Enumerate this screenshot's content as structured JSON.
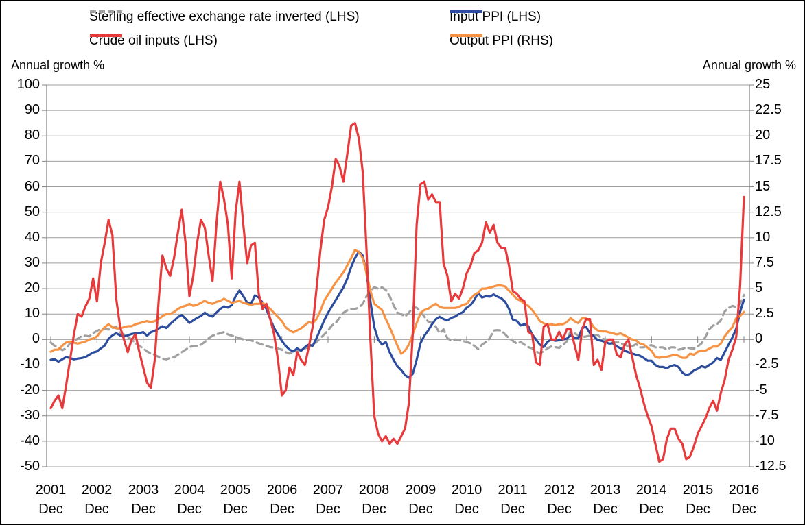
{
  "chart_data": {
    "type": "line",
    "title": "",
    "frequency": "monthly",
    "x_start": "Dec 2001",
    "x_end": "Dec 2016",
    "grid": "horizontal",
    "legend_position": "top",
    "left_axis": {
      "label": "Annual growth %",
      "min": -50,
      "max": 100,
      "step": 10
    },
    "right_axis": {
      "label": "Annual growth %",
      "min": -12.5,
      "max": 25,
      "step": 2.5
    },
    "x_tick_labels": [
      {
        "year": "2001",
        "month": "Dec"
      },
      {
        "year": "2002",
        "month": "Dec"
      },
      {
        "year": "2003",
        "month": "Dec"
      },
      {
        "year": "2004",
        "month": "Dec"
      },
      {
        "year": "2005",
        "month": "Dec"
      },
      {
        "year": "2006",
        "month": "Dec"
      },
      {
        "year": "2007",
        "month": "Dec"
      },
      {
        "year": "2008",
        "month": "Dec"
      },
      {
        "year": "2009",
        "month": "Dec"
      },
      {
        "year": "2010",
        "month": "Dec"
      },
      {
        "year": "2011",
        "month": "Dec"
      },
      {
        "year": "2012",
        "month": "Dec"
      },
      {
        "year": "2013",
        "month": "Dec"
      },
      {
        "year": "2014",
        "month": "Dec"
      },
      {
        "year": "2015",
        "month": "Dec"
      },
      {
        "year": "2016",
        "month": "Dec"
      }
    ],
    "series": [
      {
        "name": "Sterling effective exchange rate inverted (LHS)",
        "axis": "LHS",
        "style": "dashed",
        "color": "#a0a0a0",
        "values": [
          -1.2,
          -2.5,
          -3.3,
          -4.2,
          -3.5,
          -1.5,
          -0.5,
          0.3,
          1.3,
          1.5,
          1.2,
          2.5,
          3.4,
          4,
          4.3,
          3.9,
          4.5,
          5,
          2.5,
          2,
          1,
          0,
          -1.5,
          -2.5,
          -3.5,
          -4.7,
          -5.5,
          -6,
          -6.9,
          -7.5,
          -7.8,
          -7.3,
          -7,
          -6,
          -5,
          -4,
          -3,
          -2.5,
          -2.5,
          -2,
          -1,
          0.5,
          1.5,
          2,
          2.5,
          2.9,
          2,
          1.5,
          1.1,
          0.5,
          0,
          -0.3,
          -0.3,
          -1,
          -1.5,
          -2,
          -2.5,
          -3,
          -3.2,
          -3.6,
          -4,
          -5,
          -5.5,
          -5,
          -4.5,
          -4,
          -3.5,
          -3,
          -2,
          -1,
          0.5,
          2,
          3.5,
          5.5,
          6.5,
          8.5,
          10.5,
          11.5,
          12,
          12,
          12.5,
          14,
          17,
          19,
          20.5,
          20,
          20.5,
          19.5,
          17,
          13.5,
          10.5,
          10,
          9,
          10.5,
          12.5,
          12.5,
          11,
          9,
          7,
          6.5,
          5,
          2.5,
          4,
          0.5,
          -0.5,
          0,
          -0.3,
          -0.5,
          -1,
          -1.5,
          -2.5,
          -3.8,
          -2,
          -1,
          0.5,
          3.5,
          3.7,
          3.5,
          2,
          0.5,
          -0.5,
          -1.6,
          -1,
          -2,
          -3,
          -3.5,
          -4.6,
          -5.5,
          -4.6,
          -3.5,
          -2.7,
          -3,
          -3.3,
          -2,
          -0.8,
          3.5,
          2.5,
          1.5,
          0.9,
          1.2,
          1.5,
          1.8,
          1.8,
          0.5,
          0,
          0,
          -1.3,
          -0.9,
          -1.5,
          -2,
          -2.7,
          -2.7,
          -1.8,
          -3.1,
          -3.1,
          -2.5,
          -2.2,
          -3.1,
          -3.1,
          -3.1,
          -4,
          -3.1,
          -3.1,
          -4,
          -3.7,
          -3.1,
          -3.4,
          -3.6,
          -2.7,
          -1.5,
          1,
          4,
          5.5,
          6,
          7.5,
          11,
          12.4,
          13.2,
          12.7,
          14,
          17.5
        ]
      },
      {
        "name": "Input PPI (LHS)",
        "axis": "LHS",
        "style": "solid",
        "color": "#2c4d9e",
        "values": [
          -8,
          -7.8,
          -8.7,
          -7.8,
          -6.9,
          -7.3,
          -7.8,
          -7.5,
          -7.3,
          -6.9,
          -6,
          -5.1,
          -4.7,
          -3.5,
          -2.4,
          0.3,
          1.6,
          2.5,
          1.6,
          1.2,
          1.6,
          2.2,
          2.4,
          2.5,
          2.9,
          1.5,
          2.9,
          3.4,
          4.3,
          5.2,
          4.5,
          6.1,
          7.4,
          8.8,
          9.6,
          8.2,
          6.5,
          7.5,
          8.5,
          9.2,
          10.5,
          9.5,
          9,
          10.5,
          12,
          13,
          12.5,
          13.5,
          17,
          19.3,
          17,
          14.5,
          14,
          17.3,
          16.5,
          14.5,
          12,
          8,
          4.5,
          2,
          -0.5,
          -2.5,
          -4,
          -4.7,
          -3.5,
          -4.5,
          -3,
          -2,
          -2.5,
          0.5,
          4,
          7.5,
          10.5,
          13,
          15.5,
          18,
          20.5,
          24,
          28.5,
          32,
          34.5,
          33,
          26,
          15,
          5,
          0,
          -2,
          -1,
          -5,
          -8,
          -10.5,
          -12,
          -14,
          -15,
          -13.5,
          -8,
          -1.5,
          1.5,
          3.5,
          6,
          8,
          8.9,
          8,
          7.5,
          8.5,
          9,
          10,
          10.7,
          12.5,
          13.5,
          15.6,
          18.3,
          16.5,
          17,
          16.8,
          17.7,
          16.8,
          16.2,
          14.8,
          12,
          7.8,
          7.3,
          5.5,
          6,
          5.2,
          2,
          0,
          -2,
          -3,
          -0.9,
          0,
          -0.5,
          -0.3,
          0,
          0.3,
          1.7,
          0.7,
          0.4,
          4.5,
          5,
          2.5,
          1.3,
          -0.2,
          -0.5,
          -1,
          -1.6,
          -1.5,
          -2.7,
          -3.5,
          -4.4,
          -5,
          -5.5,
          -6,
          -6.4,
          -7.3,
          -8.3,
          -8.3,
          -10,
          -10.8,
          -10.8,
          -11.3,
          -10.4,
          -10,
          -10.8,
          -13,
          -14,
          -13.5,
          -12.2,
          -11.5,
          -10.5,
          -11,
          -10,
          -9,
          -7.3,
          -8,
          -5,
          -2,
          0.8,
          4.3,
          10.8,
          15.6
        ]
      },
      {
        "name": "Crude oil inputs (LHS)",
        "axis": "LHS",
        "style": "solid",
        "color": "#e8393b",
        "values": [
          -27,
          -24,
          -22,
          -27,
          -18,
          -8,
          2,
          10,
          9,
          13,
          16,
          24,
          15,
          30,
          38,
          47,
          41,
          16,
          5,
          0,
          -5,
          0,
          2,
          -5,
          -11,
          -17,
          -19,
          -8,
          15,
          33,
          28,
          25,
          32,
          42,
          51,
          38,
          17,
          25,
          38,
          47,
          44,
          33,
          23,
          45,
          62,
          55,
          45,
          24,
          50,
          62,
          45,
          30,
          37,
          38,
          18,
          12,
          14,
          8,
          2,
          -8,
          -22,
          -20,
          -11,
          -14,
          -5,
          -8,
          -10,
          -3,
          5,
          20,
          35,
          47,
          52,
          60,
          71,
          68,
          62,
          73,
          84,
          85,
          79,
          66,
          35,
          0,
          -30,
          -37,
          -40,
          -38,
          -41,
          -39,
          -41,
          -38,
          -35,
          -25,
          2,
          45,
          61,
          62,
          55,
          57,
          54,
          54,
          30,
          25,
          15,
          18,
          16,
          20,
          26,
          29,
          34,
          35,
          38,
          46,
          42,
          45,
          38,
          36,
          36,
          29,
          19,
          18,
          16,
          15,
          3,
          2,
          -9,
          -10,
          5,
          6,
          0,
          0,
          3,
          0,
          4,
          4,
          -2,
          -8,
          4,
          8,
          8,
          -10,
          -8,
          -12,
          -1,
          0,
          0,
          -6,
          -7,
          -2,
          0,
          -7,
          -14,
          -19,
          -25,
          -30,
          -34,
          -41,
          -48,
          -47,
          -39,
          -35,
          -35,
          -39,
          -41,
          -47,
          -46,
          -42,
          -37,
          -34,
          -31,
          -27,
          -24,
          -28,
          -21,
          -16,
          -8,
          -4,
          1,
          21,
          56
        ]
      },
      {
        "name": "Output PPI (RHS)",
        "axis": "RHS",
        "style": "solid",
        "color": "#f79344",
        "values": [
          -1.2,
          -1,
          -1,
          -0.6,
          -0.3,
          -0.2,
          -0.3,
          -0.4,
          -0.3,
          -0.2,
          0,
          0.1,
          0.3,
          0.8,
          1.2,
          1.5,
          1.2,
          1.1,
          1.1,
          1.2,
          1.3,
          1.3,
          1.5,
          1.6,
          1.7,
          1.8,
          1.7,
          1.8,
          2,
          2.3,
          2.5,
          2.5,
          2.7,
          3,
          3.2,
          3.3,
          3.5,
          3.3,
          3.4,
          3.6,
          3.8,
          3.6,
          3.5,
          3.7,
          3.8,
          4,
          3.8,
          3.6,
          3.7,
          3.8,
          3.6,
          3.5,
          3.4,
          3.5,
          3.5,
          3.6,
          3.3,
          3,
          2.6,
          2.2,
          1.8,
          1.2,
          0.9,
          0.7,
          0.9,
          1.1,
          1.4,
          1.7,
          1.6,
          2,
          2.8,
          3.8,
          4.4,
          5,
          5.6,
          6.1,
          6.6,
          7.3,
          8,
          8.8,
          8.6,
          8,
          6.5,
          4.8,
          3.5,
          3.2,
          2.9,
          2,
          1.2,
          0.3,
          -0.6,
          -1.4,
          -1.1,
          -0.5,
          0.5,
          1.6,
          2.6,
          2.9,
          3,
          3.3,
          3.5,
          3.2,
          3.1,
          3.1,
          3.1,
          3.1,
          3.2,
          3.4,
          3.5,
          4,
          4.4,
          4.6,
          5,
          5,
          5.1,
          5.2,
          5.3,
          5.3,
          5.2,
          4.8,
          4.4,
          4,
          3.8,
          3.5,
          3.3,
          2.9,
          2.4,
          1.8,
          1.6,
          1.4,
          1.5,
          1.4,
          1.5,
          1.5,
          1.7,
          2.1,
          1.8,
          1.6,
          2.1,
          2.1,
          1.8,
          1.2,
          0.9,
          0.8,
          0.8,
          0.7,
          0.6,
          0.5,
          0.6,
          0.4,
          0.2,
          0,
          -0.1,
          -0.4,
          -0.5,
          -0.8,
          -1.1,
          -1.7,
          -1.8,
          -1.7,
          -1.7,
          -1.6,
          -1.5,
          -1.6,
          -1.8,
          -1.8,
          -1.4,
          -1.5,
          -1.2,
          -1.1,
          -1.1,
          -0.9,
          -0.7,
          -0.7,
          -0.4,
          0.3,
          0.8,
          1.2,
          2.1,
          2.3,
          2.7
        ]
      }
    ]
  }
}
